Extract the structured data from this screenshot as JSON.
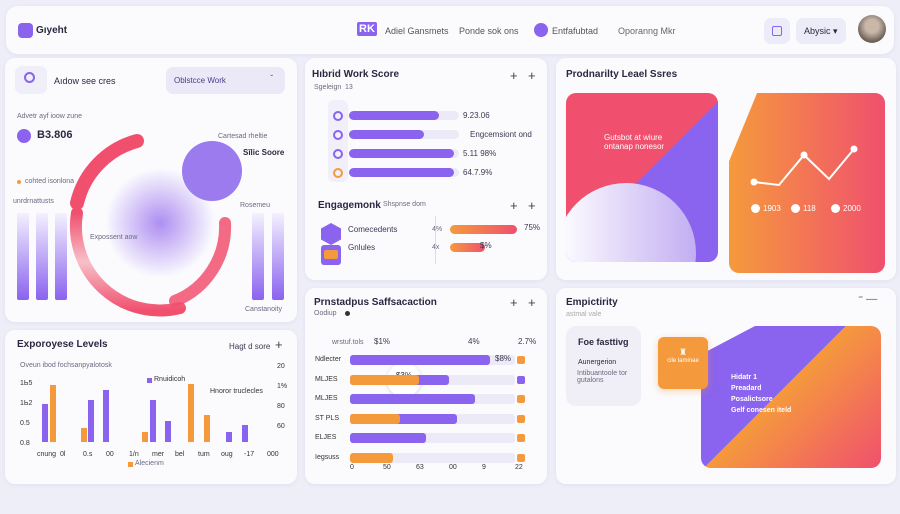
{
  "header": {
    "logo_text": "Gıyeht",
    "nav": [
      "Adiel Gansmets",
      "Ponde sok ons",
      "Entfafubtad",
      "Oporanng Mkr"
    ],
    "nav_icon": "RK",
    "user_menu": "Abysic"
  },
  "search": {
    "placeholder": "Aıdow see cres",
    "dropdown": "Oblstcce Work"
  },
  "overview": {
    "caption": "Advetr ayf ioow zune",
    "value": "B3.806",
    "ring_label_1": "Cartesad rheltie",
    "ring_label_2": "Sǐlic Soore",
    "legend": "cohted isonlona",
    "left_label": "unrdrnattusts",
    "center_label": "Expossent aow",
    "right_label": "Rosemeu",
    "bottom_label": "Canstanoity"
  },
  "hybrid": {
    "title": "Hıbrid Work Score",
    "subtitle": "Sgeleign",
    "count": "13",
    "rows": [
      {
        "value": "9.23.06",
        "fill": 0.82
      },
      {
        "value": "Engcemsiont ond",
        "fill": 0.68
      },
      {
        "value": "5.11 98%",
        "fill": 0.95
      },
      {
        "value": "64.7.9%",
        "fill": 0.95
      }
    ]
  },
  "engagement": {
    "title": "Engagemonk",
    "subtitle": "Shspnse dom",
    "rows": [
      {
        "label": "Comecedents",
        "pct": "4%",
        "value": "75%",
        "fill": 0.95
      },
      {
        "label": "Gnlules",
        "pct": "4x",
        "value": "$%",
        "fill": 0.5
      }
    ]
  },
  "satisfaction": {
    "title": "Prnstadpus Saffsacaction",
    "subtitle": "Oodiup",
    "header_left": "wrstuf.tols",
    "header_val": "$1%",
    "header_mid": "4%",
    "header_right": "2.7%",
    "badge": "$3%",
    "rows": [
      {
        "label": "Ndlecter",
        "purple": 0.85,
        "orange": 0,
        "value": "$8%"
      },
      {
        "label": "MLJES",
        "purple": 0.6,
        "orange": 0.6,
        "value": ""
      },
      {
        "label": "MLJES",
        "purple": 0.76,
        "orange": 0,
        "value": ""
      },
      {
        "label": "ST PLS",
        "purple": 0.65,
        "orange": 0.43,
        "value": ""
      },
      {
        "label": "ELJES",
        "purple": 0.46,
        "orange": 0,
        "value": ""
      },
      {
        "label": "Iegsuss",
        "purple": 0,
        "orange": 0.37,
        "value": ""
      }
    ],
    "xticks": [
      "0",
      "50",
      "63",
      "00",
      "9",
      "22"
    ]
  },
  "employee": {
    "title": "Exporoyese Levels",
    "action": "Hagt d sore",
    "caption": "Oveun ibod fochsanpyalotosk",
    "legend_purple": "Rnuidicoh",
    "legend_orange": "Alecienm",
    "annotation": "Hnoror truclecles",
    "yticks_left": [
      "1Ь5",
      "1Ь2",
      "0.5",
      "0.8"
    ],
    "yticks_right": [
      "20",
      "1%",
      "80",
      "60"
    ],
    "xticks": [
      "cnung",
      "0l",
      "0.s",
      "00",
      "1/n",
      "mer",
      "bel",
      "tum",
      "oug",
      "-17",
      "000"
    ],
    "purple": [
      0.55,
      0,
      0,
      0.6,
      0.75,
      0,
      0,
      0.6,
      0.3,
      0,
      0,
      0,
      0.15,
      0.25
    ],
    "orange": [
      0.82,
      0,
      0.2,
      0,
      0,
      0,
      0.15,
      0,
      0,
      0.83,
      0.38,
      0,
      0,
      0
    ]
  },
  "productivity": {
    "title": "Prodnarilty Leael Ssres",
    "tile_text": "Gutsbot at wiure ontanap nonesor",
    "series": [
      0.35,
      0.3,
      0.8,
      0.4,
      0.9
    ],
    "legend": [
      "1903",
      "118",
      "2000"
    ]
  },
  "empiricity": {
    "title": "Empictirity",
    "subtitle": "astmal  vale",
    "box_title": "Foe fasttivg",
    "box_sub": "Aunergerion",
    "box_text": "Intibuantoole tor gutalons",
    "tile_text": "cile laminae",
    "hero_lines": [
      "Hidatr 1",
      "Preadard",
      "Posalictsore",
      "Gelf conesen iteld"
    ]
  },
  "colors": {
    "purple": "#8a63ee",
    "orange": "#f59a3c",
    "pink": "#f0506e",
    "bg": "#eeeef8"
  }
}
